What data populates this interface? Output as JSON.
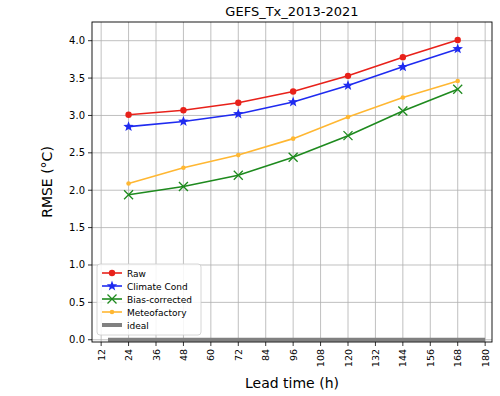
{
  "chart_data": {
    "type": "line",
    "title": "GEFS_Tx_2013-2021",
    "x_label": "Lead time (h)",
    "y_label": "RMSE (°C)",
    "x": [
      24,
      48,
      72,
      96,
      120,
      144,
      168
    ],
    "xlim": [
      8,
      183
    ],
    "xticks": [
      12,
      24,
      36,
      48,
      60,
      72,
      84,
      96,
      108,
      120,
      132,
      144,
      156,
      168,
      180
    ],
    "ylim": [
      -0.03,
      4.25
    ],
    "yticks": [
      {
        "value": 0,
        "label": "0.0"
      },
      {
        "value": 0.5,
        "label": "0.5"
      },
      {
        "value": 1,
        "label": "1.0"
      },
      {
        "value": 1.5,
        "label": "1.5"
      },
      {
        "value": 2,
        "label": "2.0"
      },
      {
        "value": 2.5,
        "label": "2.5"
      },
      {
        "value": 3,
        "label": "3.0"
      },
      {
        "value": 3.5,
        "label": "3.5"
      },
      {
        "value": 4,
        "label": "4.0"
      }
    ],
    "grid": true,
    "legend": "lower left",
    "series": [
      {
        "name": "Raw",
        "color": "#e8211a",
        "marker": "circle",
        "values": [
          3.01,
          3.07,
          3.17,
          3.32,
          3.53,
          3.78,
          4.01
        ]
      },
      {
        "name": "Climate Cond",
        "color": "#1f2bf0",
        "marker": "star",
        "values": [
          2.85,
          2.92,
          3.02,
          3.18,
          3.4,
          3.65,
          3.89
        ]
      },
      {
        "name": "Bias-corrected",
        "color": "#1e8a1e",
        "marker": "x",
        "values": [
          1.94,
          2.05,
          2.2,
          2.44,
          2.73,
          3.06,
          3.35
        ]
      },
      {
        "name": "Meteofactory",
        "color": "#ffb732",
        "marker": "dot",
        "values": [
          2.09,
          2.3,
          2.47,
          2.69,
          2.98,
          3.24,
          3.46
        ]
      },
      {
        "name": "ideal",
        "color": "#808080",
        "marker": "none",
        "x": [
          15,
          180
        ],
        "values": [
          0,
          0
        ]
      }
    ]
  }
}
